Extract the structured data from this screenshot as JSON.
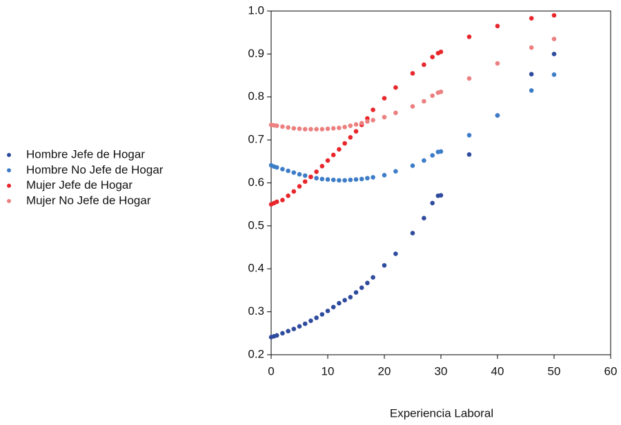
{
  "chart_data": {
    "type": "scatter",
    "x_label": "Experiencia Laboral",
    "x": [
      0,
      0.5,
      1,
      2,
      3,
      4,
      5,
      6,
      7,
      8,
      9,
      10,
      11,
      12,
      13,
      14,
      15,
      16,
      17,
      18,
      20,
      22,
      25,
      27,
      28.5,
      29.5,
      30,
      35,
      40,
      46,
      50
    ],
    "series": [
      {
        "name": "Hombre Jefe de Hogar",
        "color": "#2f4b9e",
        "values": [
          0.241,
          0.243,
          0.245,
          0.25,
          0.255,
          0.26,
          0.266,
          0.272,
          0.279,
          0.286,
          0.294,
          0.302,
          0.311,
          0.32,
          0.327,
          0.334,
          0.345,
          0.356,
          0.367,
          0.38,
          0.408,
          0.435,
          0.483,
          0.518,
          0.553,
          0.57,
          0.571,
          0.666,
          0.757,
          0.853,
          0.9
        ]
      },
      {
        "name": "Hombre No Jefe de Hogar",
        "color": "#3d7dc8",
        "values": [
          0.641,
          0.638,
          0.636,
          0.632,
          0.628,
          0.624,
          0.62,
          0.617,
          0.614,
          0.611,
          0.609,
          0.608,
          0.607,
          0.606,
          0.606,
          0.607,
          0.608,
          0.609,
          0.611,
          0.613,
          0.618,
          0.627,
          0.64,
          0.652,
          0.664,
          0.672,
          0.673,
          0.711,
          0.757,
          0.815,
          0.852
        ]
      },
      {
        "name": "Mujer Jefe de Hogar",
        "color": "#e8262b",
        "values": [
          0.55,
          0.553,
          0.556,
          0.56,
          0.57,
          0.58,
          0.592,
          0.603,
          0.614,
          0.626,
          0.639,
          0.652,
          0.665,
          0.678,
          0.692,
          0.706,
          0.72,
          0.735,
          0.75,
          0.77,
          0.797,
          0.822,
          0.855,
          0.875,
          0.893,
          0.902,
          0.905,
          0.94,
          0.965,
          0.983,
          0.99
        ]
      },
      {
        "name": "Mujer No Jefe de Hogar",
        "color": "#ec8080",
        "values": [
          0.735,
          0.734,
          0.733,
          0.731,
          0.729,
          0.727,
          0.726,
          0.725,
          0.725,
          0.725,
          0.725,
          0.726,
          0.727,
          0.728,
          0.73,
          0.733,
          0.736,
          0.739,
          0.743,
          0.746,
          0.753,
          0.763,
          0.778,
          0.79,
          0.803,
          0.81,
          0.812,
          0.843,
          0.878,
          0.915,
          0.935
        ]
      }
    ],
    "xlim": [
      0,
      60
    ],
    "xticks": [
      0,
      10,
      20,
      30,
      40,
      50,
      60
    ],
    "ylim": [
      0.2,
      1
    ],
    "yticks": [
      0.2,
      0.3,
      0.4,
      0.5,
      0.6,
      0.7,
      0.8,
      0.9,
      {
        "value": 1,
        "label": "1.0"
      }
    ],
    "legend": "left"
  }
}
